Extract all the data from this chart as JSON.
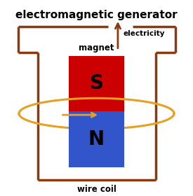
{
  "title": "electromagnetic generator",
  "title_fontsize": 11,
  "title_fontweight": "bold",
  "bg_color": "#ffffff",
  "circuit_color": "#8B3A0F",
  "circuit_linewidth": 2.5,
  "magnet_S_color": "#cc0000",
  "magnet_N_color": "#3355cc",
  "magnet_label": "magnet",
  "S_label": "S",
  "N_label": "N",
  "letter_fontsize": 20,
  "letter_fontweight": "bold",
  "coil_color": "#E8A020",
  "coil_linewidth": 2.2,
  "electricity_label": "electricity",
  "wire_coil_label": "wire coil"
}
